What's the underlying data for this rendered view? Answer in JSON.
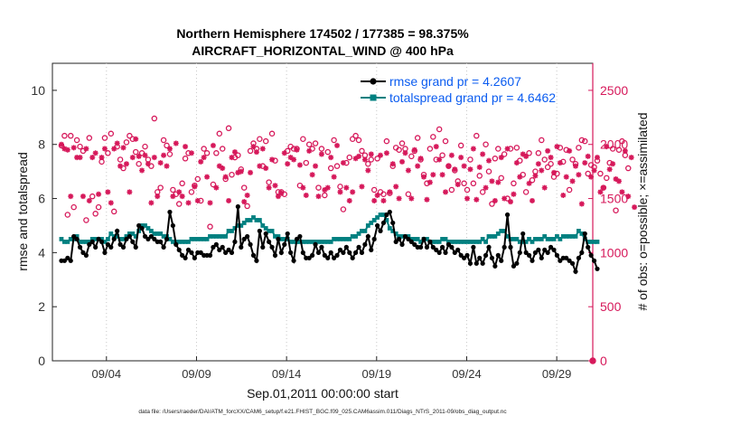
{
  "chart_data": {
    "type": "line",
    "title_line1": "Northern Hemisphere 174502 / 177385 = 98.375%",
    "title_line2": "AIRCRAFT_HORIZONTAL_WIND @ 400 hPa",
    "ylabel_left": "rmse and totalspread",
    "ylabel_right": "# of obs: o=possible; ×=assimilated",
    "xlabel": "Sep.01,2011 00:00:00 start",
    "footnote": "data file: /Users/raeder/DAI/ATM_forcXX/CAM6_setup/f.e21.FHIST_BGC.f09_025.CAM6assim.011/Diags_NTrS_2011-09/obs_diag_output.nc",
    "x_range_days": [
      0.5,
      30.5
    ],
    "ylim_left": [
      0,
      11
    ],
    "ylim_right": [
      0,
      2750
    ],
    "yticks_left": [
      "0",
      "2",
      "4",
      "6",
      "8",
      "10"
    ],
    "yticks_left_values": [
      0,
      2,
      4,
      6,
      8,
      10
    ],
    "yticks_right": [
      "0",
      "500",
      "1000",
      "1500",
      "2000",
      "2500"
    ],
    "yticks_right_values": [
      0,
      500,
      1000,
      1500,
      2000,
      2500
    ],
    "xticks": [
      "09/04",
      "09/09",
      "09/14",
      "09/19",
      "09/24",
      "09/29"
    ],
    "xticks_days": [
      3.5,
      8.5,
      13.5,
      18.5,
      23.5,
      28.5
    ],
    "colors": {
      "rmse": "#000000",
      "spread": "#008080",
      "obs": "#d6185a",
      "legend_text": "#0b5cf0"
    },
    "series": [
      {
        "name": "rmse",
        "legend": "rmse grand pr = 4.2607",
        "values": [
          3.7,
          3.7,
          3.8,
          3.7,
          4.6,
          4.5,
          4.2,
          4.0,
          3.9,
          4.3,
          4.4,
          4.2,
          4.5,
          4.4,
          4.0,
          4.3,
          4.2,
          4.5,
          4.8,
          4.3,
          4.2,
          4.5,
          4.6,
          4.4,
          4.2,
          5.0,
          4.9,
          4.6,
          4.5,
          4.6,
          4.5,
          4.4,
          4.4,
          4.2,
          4.5,
          5.5,
          5.0,
          4.3,
          4.1,
          3.9,
          3.8,
          4.1,
          4.0,
          3.8,
          4.0,
          4.0,
          3.9,
          3.9,
          3.9,
          4.2,
          4.3,
          4.1,
          4.2,
          4.0,
          4.1,
          4.0,
          4.4,
          5.7,
          4.2,
          4.5,
          4.6,
          4.3,
          3.9,
          3.7,
          4.8,
          4.2,
          4.7,
          4.4,
          4.2,
          3.9,
          4.5,
          4.0,
          4.3,
          4.7,
          4.0,
          3.7,
          4.5,
          4.6,
          4.0,
          3.8,
          3.8,
          3.9,
          4.3,
          4.0,
          4.2,
          3.9,
          3.8,
          4.0,
          3.8,
          3.9,
          4.1,
          4.0,
          4.2,
          4.0,
          3.8,
          4.0,
          4.2,
          4.0,
          4.3,
          4.6,
          4.1,
          4.5,
          5.0,
          4.8,
          5.1,
          5.4,
          5.5,
          5.1,
          4.4,
          4.5,
          4.3,
          4.6,
          4.5,
          4.4,
          4.3,
          4.2,
          4.2,
          4.5,
          4.2,
          4.4,
          4.2,
          4.1,
          4.0,
          4.2,
          4.0,
          4.3,
          4.2,
          4.0,
          4.1,
          3.9,
          3.8,
          3.9,
          3.6,
          4.2,
          3.6,
          3.8,
          3.6,
          3.9,
          4.2,
          3.8,
          3.5,
          3.9,
          3.7,
          4.2,
          5.4,
          4.2,
          3.5,
          3.6,
          4.0,
          4.7,
          4.0,
          3.9,
          3.7,
          4.0,
          4.1,
          3.8,
          4.1,
          4.0,
          4.2,
          4.1,
          3.9,
          3.7,
          3.8,
          3.8,
          3.7,
          3.6,
          3.3,
          3.8,
          4.0,
          4.7,
          4.2,
          3.9,
          3.7,
          3.4
        ]
      },
      {
        "name": "totalspread",
        "legend": "totalspread grand pr = 4.6462",
        "values": [
          4.5,
          4.4,
          4.4,
          4.5,
          4.5,
          4.6,
          4.4,
          4.4,
          4.4,
          4.4,
          4.5,
          4.5,
          4.5,
          4.5,
          4.4,
          4.5,
          4.7,
          4.6,
          4.6,
          4.5,
          4.5,
          4.6,
          4.7,
          4.7,
          4.6,
          4.8,
          5.0,
          5.0,
          4.9,
          4.8,
          4.7,
          4.7,
          4.7,
          4.6,
          4.6,
          4.5,
          4.4,
          4.4,
          4.4,
          4.4,
          4.4,
          4.4,
          4.5,
          4.5,
          4.5,
          4.5,
          4.5,
          4.5,
          4.6,
          4.6,
          4.6,
          4.6,
          4.6,
          4.6,
          4.8,
          4.8,
          4.9,
          5.0,
          5.0,
          5.1,
          5.2,
          5.2,
          5.3,
          5.2,
          5.2,
          5.0,
          4.9,
          4.8,
          4.8,
          4.6,
          4.6,
          4.5,
          4.5,
          4.5,
          4.4,
          4.4,
          4.4,
          4.4,
          4.4,
          4.4,
          4.4,
          4.4,
          4.4,
          4.4,
          4.4,
          4.4,
          4.4,
          4.4,
          4.5,
          4.5,
          4.5,
          4.5,
          4.5,
          4.5,
          4.6,
          4.6,
          4.7,
          4.8,
          4.8,
          5.0,
          5.1,
          5.2,
          5.3,
          5.4,
          5.4,
          5.2,
          4.9,
          4.8,
          4.7,
          4.6,
          4.6,
          4.6,
          4.6,
          4.5,
          4.5,
          4.5,
          4.4,
          4.5,
          4.5,
          4.4,
          4.4,
          4.4,
          4.4,
          4.5,
          4.5,
          4.4,
          4.4,
          4.4,
          4.4,
          4.4,
          4.4,
          4.4,
          4.4,
          4.4,
          4.4,
          4.4,
          4.5,
          4.4,
          4.6,
          4.6,
          4.6,
          4.7,
          4.8,
          4.8,
          4.6,
          4.5,
          4.5,
          4.5,
          4.4,
          4.4,
          4.4,
          4.5,
          4.4,
          4.5,
          4.5,
          4.5,
          4.6,
          4.5,
          4.5,
          4.5,
          4.6,
          4.5,
          4.6,
          4.6,
          4.6,
          4.6,
          4.6,
          4.8,
          4.7,
          4.5,
          4.4,
          4.4,
          4.4,
          4.4
        ]
      }
    ],
    "obs_possible": [
      1990,
      2080,
      1350,
      2080,
      1420,
      2040,
      1980,
      1940,
      1300,
      2060,
      1520,
      1360,
      1420,
      1840,
      2060,
      1920,
      2100,
      1380,
      1980,
      1860,
      1780,
      2020,
      2080,
      2050,
      1930,
      1820,
      1920,
      1980,
      1860,
      1800,
      2240,
      1560,
      1600,
      2040,
      1990,
      1910,
      1580,
      1540,
      1450,
      1640,
      1870,
      1920,
      1560,
      1620,
      1680,
      1480,
      1960,
      1920,
      1240,
      1630,
      1920,
      2100,
      1960,
      1680,
      2150,
      1720,
      1880,
      1900,
      1770,
      1600,
      1430,
      1940,
      2010,
      1960,
      2050,
      1800,
      2030,
      1650,
      2100,
      1850,
      1560,
      1560,
      1540,
      1940,
      1980,
      1960,
      1960,
      1620,
      2050,
      1830,
      2000,
      1960,
      2010,
      1600,
      1960,
      1530,
      1930,
      1780,
      2040,
      1800,
      1610,
      1400,
      1830,
      1880,
      2050,
      2080,
      2040,
      1940,
      1900,
      1820,
      1860,
      1580,
      1870,
      1560,
      1540,
      2030,
      1550,
      1800,
      1970,
      1950,
      2010,
      1960,
      1540,
      1890,
      1940,
      2060,
      1860,
      1720,
      1640,
      1960,
      2070,
      1860,
      2140,
      1900,
      2030,
      1800,
      1580,
      1760,
      1660,
      1990,
      1640,
      1580,
      1860,
      1640,
      2080,
      1710,
      1560,
      2000,
      1750,
      1450,
      1870,
      1960,
      1690,
      1910,
      1500,
      1960,
      1640,
      1970,
      1850,
      1720,
      1560,
      1920,
      1670,
      1750,
      1920,
      2040,
      1860,
      1790,
      1820,
      1700,
      1730,
      1970,
      1840,
      1950,
      1580,
      1860,
      1820,
      1970,
      2040,
      2030,
      1730,
      1810,
      1790,
      1850,
      1730,
      1600,
      1690,
      1830,
      1960,
      1390,
      1950,
      2030,
      1900,
      1780
    ],
    "obs_assimilated": [
      2000,
      1960,
      1950,
      1520,
      1970,
      1880,
      1880,
      1520,
      1960,
      1480,
      1880,
      1920,
      1540,
      1880,
      1960,
      1560,
      1460,
      1960,
      2010,
      1800,
      1970,
      1820,
      1560,
      1880,
      2050,
      1890,
      1760,
      1900,
      1820,
      1460,
      1880,
      1520,
      1830,
      1900,
      1800,
      1960,
      1520,
      2010,
      1560,
      1520,
      1980,
      1460,
      1920,
      1610,
      1480,
      1840,
      1880,
      1700,
      1460,
      1990,
      1600,
      1800,
      1780,
      1700,
      1480,
      1880,
      1930,
      1740,
      1750,
      1470,
      1530,
      1740,
      1980,
      1930,
      1800,
      1960,
      1780,
      1600,
      1860,
      1620,
      1520,
      1550,
      1920,
      1820,
      1880,
      1860,
      1950,
      1810,
      1600,
      1530,
      1940,
      1720,
      1800,
      1520,
      1910,
      1580,
      1600,
      1880,
      1700,
      1990,
      1560,
      1830,
      1600,
      1480,
      1560,
      1870,
      1890,
      1610,
      1860,
      1760,
      1910,
      1480,
      1530,
      1900,
      1480,
      1920,
      1560,
      1820,
      1610,
      1500,
      1840,
      1920,
      1760,
      1500,
      1950,
      1800,
      1870,
      1700,
      1490,
      1650,
      1720,
      1980,
      1860,
      1720,
      1560,
      1800,
      1900,
      1770,
      1630,
      1880,
      1800,
      1500,
      1770,
      1960,
      1490,
      1790,
      1910,
      1600,
      1850,
      1660,
      1480,
      1650,
      1880,
      1500,
      1960,
      1470,
      1540,
      1830,
      1700,
      1910,
      1890,
      1640,
      1480,
      1710,
      1820,
      1760,
      1600,
      1940,
      1880,
      1740,
      1980,
      1830,
      1530,
      1700,
      1940,
      1660,
      1800,
      1720,
      1450,
      1830,
      1890,
      1700,
      1760,
      1880,
      1560,
      1600,
      1980,
      1770,
      1820,
      1680,
      1660,
      1560,
      1940,
      1520,
      1880,
      1420
    ]
  }
}
